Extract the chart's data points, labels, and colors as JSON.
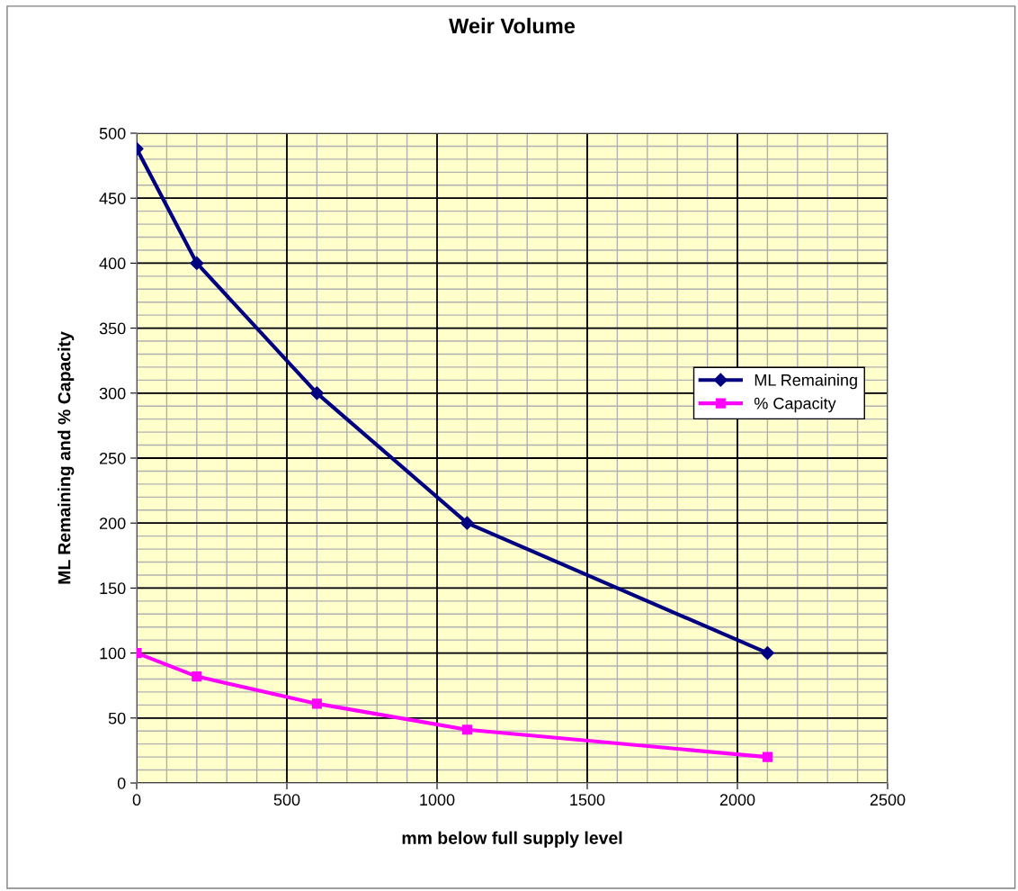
{
  "chart_data": {
    "type": "line",
    "title": "Weir Volume",
    "xlabel": "mm below full supply level",
    "ylabel": "ML Remaining and % Capacity",
    "x": [
      0,
      200,
      600,
      1100,
      2100
    ],
    "series": [
      {
        "name": "ML Remaining",
        "color": "#000080",
        "marker": "diamond",
        "values": [
          488,
          400,
          300,
          200,
          100
        ]
      },
      {
        "name": "% Capacity",
        "color": "#ff00ff",
        "marker": "square",
        "values": [
          100,
          82,
          61,
          41,
          20
        ]
      }
    ],
    "xlim": [
      0,
      2500
    ],
    "xticks": [
      0,
      500,
      1000,
      1500,
      2000,
      2500
    ],
    "ylim": [
      0,
      500
    ],
    "yticks": [
      0,
      50,
      100,
      150,
      200,
      250,
      300,
      350,
      400,
      450,
      500
    ],
    "grid": true,
    "legend": "right",
    "line_style": "solid"
  }
}
